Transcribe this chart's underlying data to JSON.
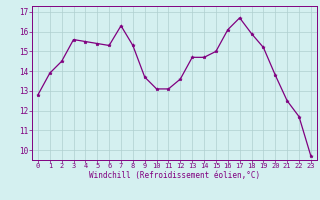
{
  "x": [
    0,
    1,
    2,
    3,
    4,
    5,
    6,
    7,
    8,
    9,
    10,
    11,
    12,
    13,
    14,
    15,
    16,
    17,
    18,
    19,
    20,
    21,
    22,
    23
  ],
  "y": [
    12.8,
    13.9,
    14.5,
    15.6,
    15.5,
    15.4,
    15.3,
    16.3,
    15.3,
    13.7,
    13.1,
    13.1,
    13.6,
    14.7,
    14.7,
    15.0,
    16.1,
    16.7,
    15.9,
    15.2,
    13.8,
    12.5,
    11.7,
    9.7
  ],
  "xlim": [
    -0.5,
    23.5
  ],
  "ylim": [
    9.5,
    17.3
  ],
  "yticks": [
    10,
    11,
    12,
    13,
    14,
    15,
    16,
    17
  ],
  "xticks": [
    0,
    1,
    2,
    3,
    4,
    5,
    6,
    7,
    8,
    9,
    10,
    11,
    12,
    13,
    14,
    15,
    16,
    17,
    18,
    19,
    20,
    21,
    22,
    23
  ],
  "xlabel": "Windchill (Refroidissement éolien,°C)",
  "line_color": "#800080",
  "marker": "*",
  "bg_color": "#d4f0f0",
  "grid_color": "#afd0d0",
  "tick_color": "#800080"
}
